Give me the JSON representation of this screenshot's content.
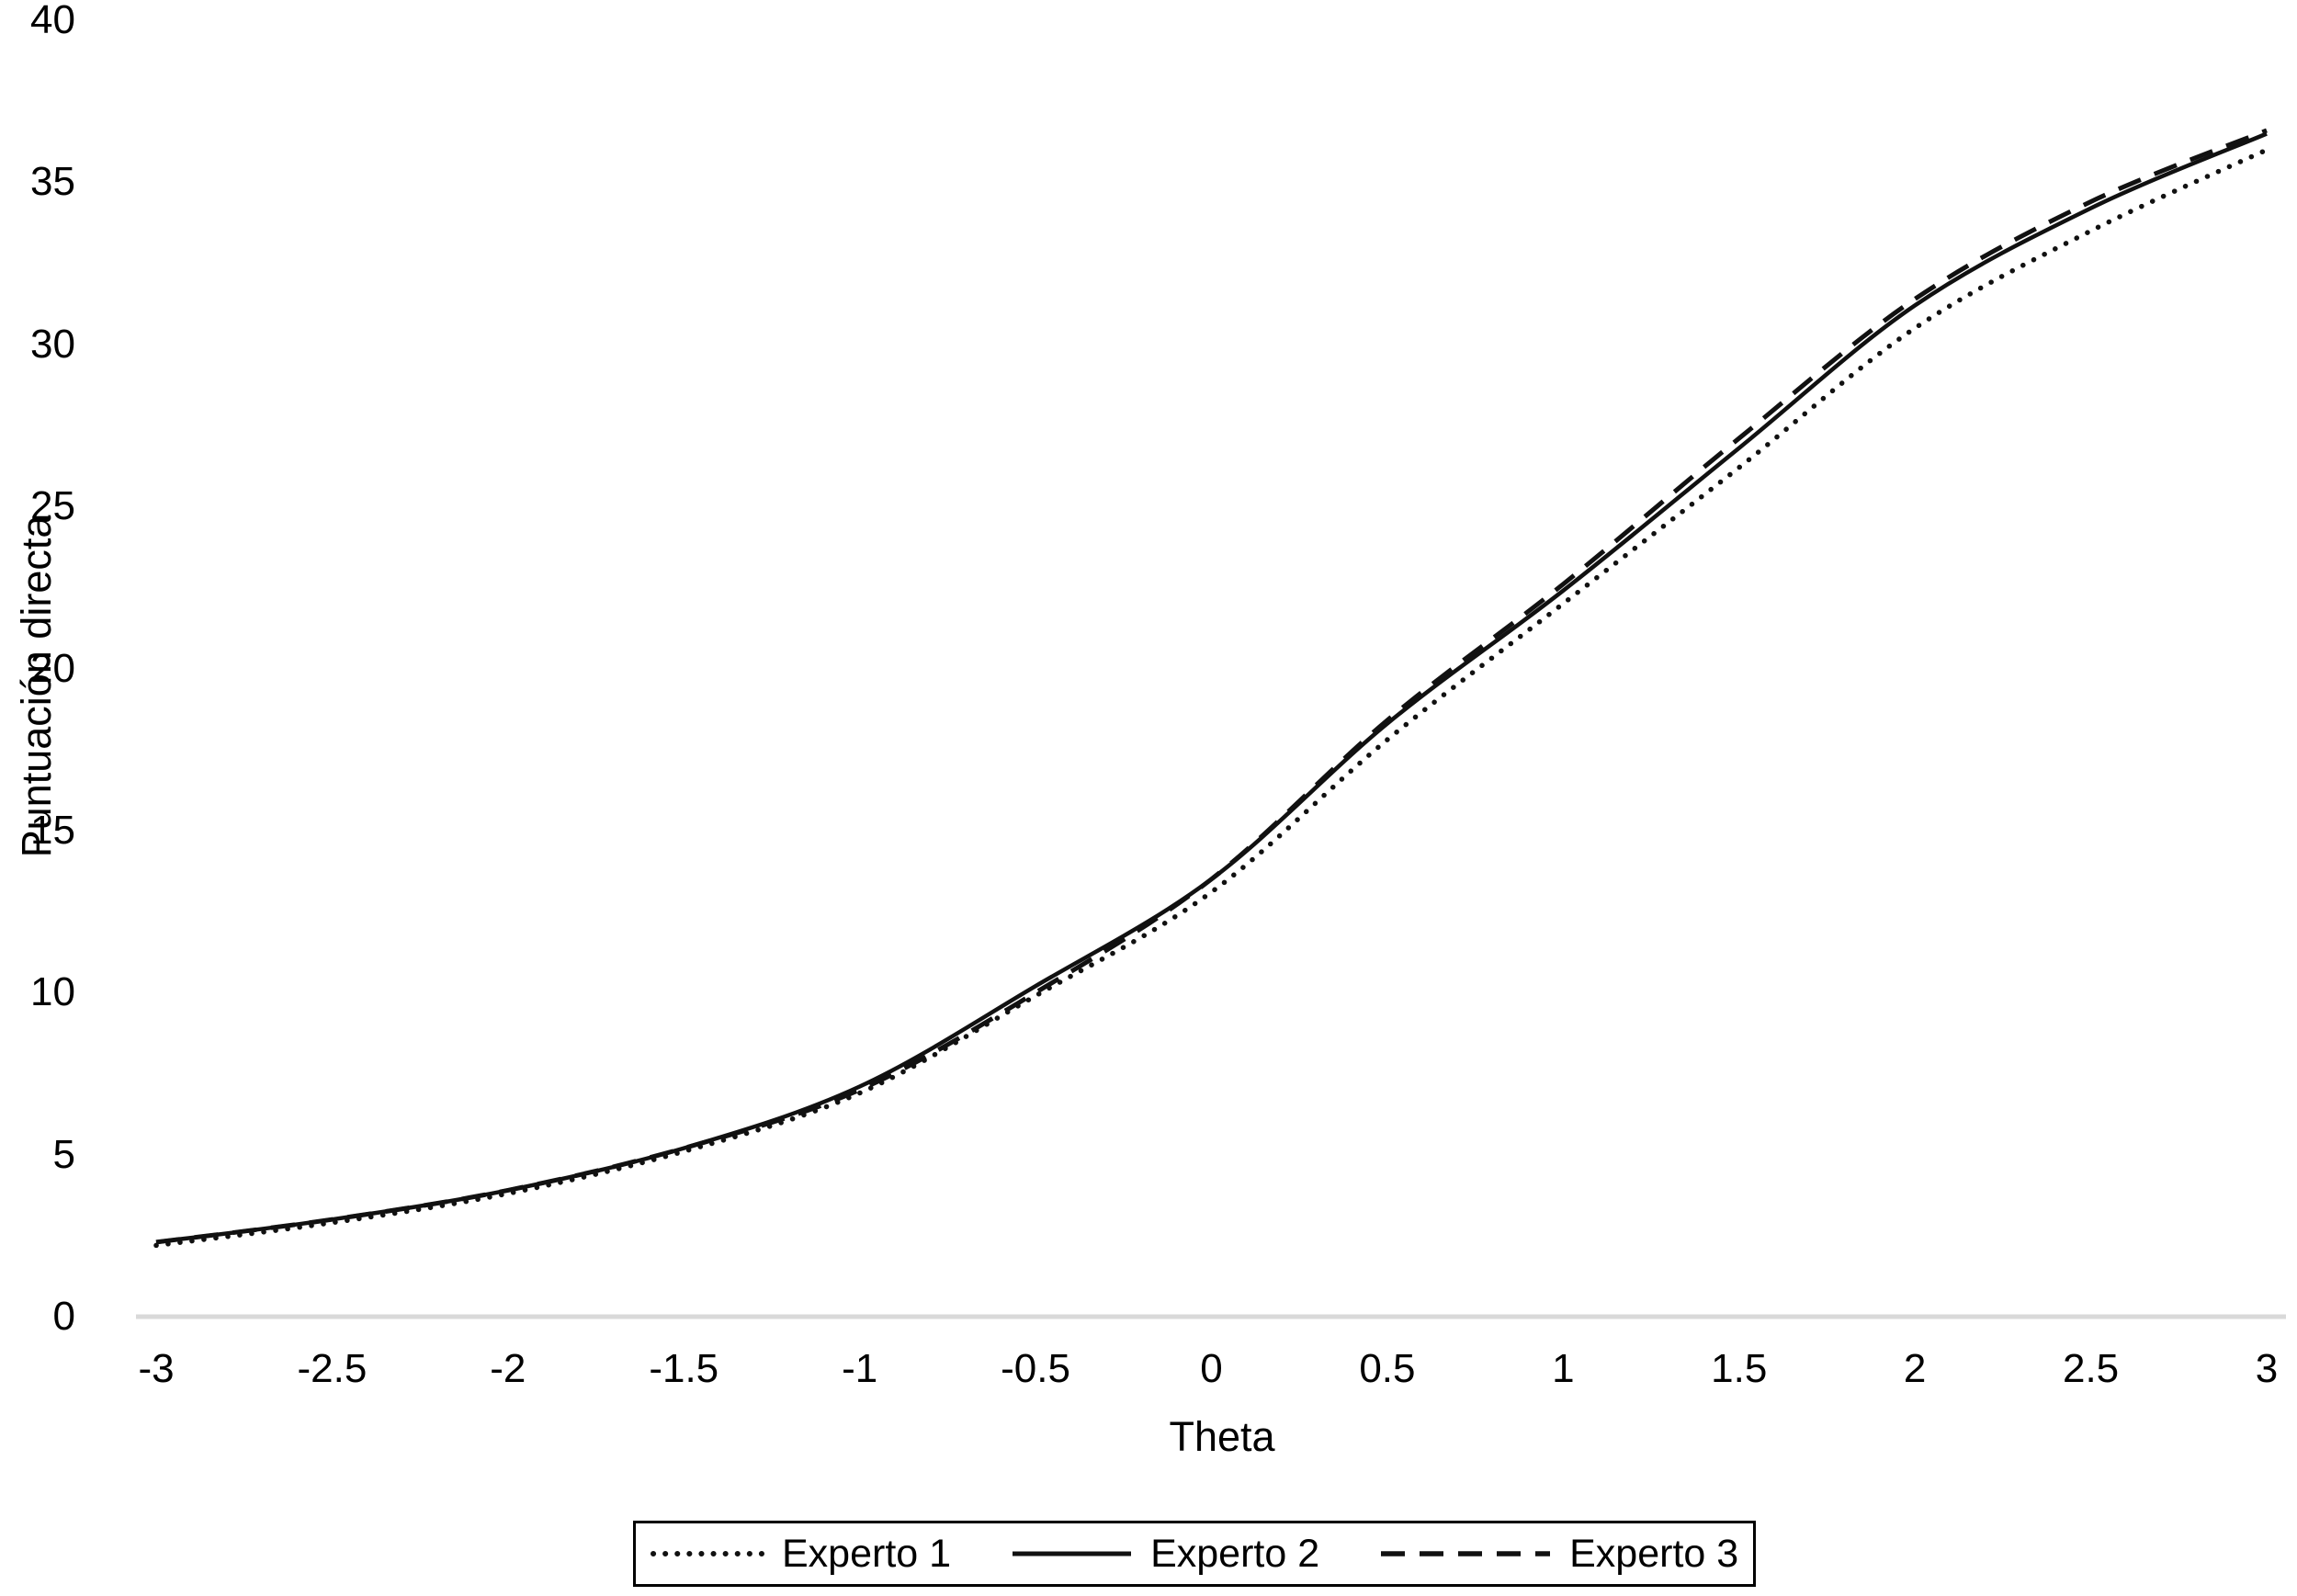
{
  "figure": {
    "background_color": "#ffffff",
    "text_color": "#000000",
    "axis_line_color": "#d9d9d9",
    "curve_color": "#111111",
    "legend_border_color": "#000000"
  },
  "chart_data": {
    "type": "line",
    "title": "",
    "xlabel": "Theta",
    "ylabel": "Puntuación directa",
    "xlim": [
      -3,
      3
    ],
    "ylim": [
      0,
      40
    ],
    "grid": false,
    "legend_position": "bottom-center-boxed",
    "x": [
      -3,
      -2.5,
      -2,
      -1.5,
      -1,
      -0.5,
      0,
      0.5,
      1,
      1.5,
      2,
      2.5,
      3
    ],
    "xtick_labels": [
      "-3",
      "-2.5",
      "-2",
      "-1.5",
      "-1",
      "-0.5",
      "0",
      "0.5",
      "1",
      "1.5",
      "2",
      "2.5",
      "3"
    ],
    "ytick_values": [
      0,
      5,
      10,
      15,
      20,
      25,
      30,
      35,
      40
    ],
    "ytick_labels": [
      "0",
      "5",
      "10",
      "15",
      "20",
      "25",
      "30",
      "35",
      "40"
    ],
    "series": [
      {
        "name": "Experto 1",
        "line_style": "dotted",
        "values": [
          2.2,
          2.9,
          3.8,
          5.1,
          6.9,
          9.9,
          13.1,
          17.8,
          22.0,
          26.2,
          30.5,
          33.5,
          36.0
        ]
      },
      {
        "name": "Experto 2",
        "line_style": "solid",
        "values": [
          2.3,
          3.0,
          3.9,
          5.2,
          7.1,
          10.2,
          13.5,
          18.3,
          22.4,
          26.8,
          31.2,
          34.2,
          36.5
        ]
      },
      {
        "name": "Experto 3",
        "line_style": "dashed",
        "values": [
          2.3,
          3.0,
          3.9,
          5.2,
          7.0,
          10.0,
          13.5,
          18.4,
          22.6,
          27.1,
          31.4,
          34.4,
          36.6
        ]
      }
    ]
  }
}
